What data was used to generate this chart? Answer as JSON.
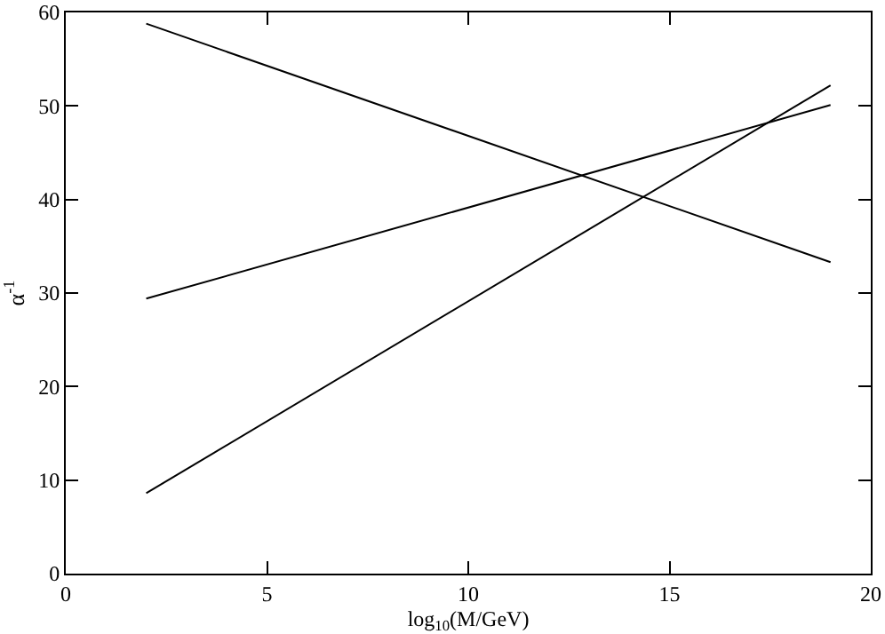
{
  "chart_data": {
    "type": "line",
    "xlabel": "log$_{10}$(M/GeV)",
    "ylabel": "α$^{-1}$",
    "x": [
      2,
      19
    ],
    "series": [
      {
        "color": "#000000",
        "values": [
          58.8,
          33.3
        ]
      },
      {
        "color": "#000000",
        "values": [
          29.4,
          50.1
        ]
      },
      {
        "color": "#000000",
        "values": [
          8.6,
          52.2
        ]
      }
    ],
    "xlim": [
      0,
      20
    ],
    "xticks": [
      0,
      5,
      10,
      15,
      20
    ],
    "ylim": [
      0,
      60
    ],
    "yticks": [
      0,
      10,
      20,
      30,
      40,
      50,
      60
    ],
    "grid": false,
    "marker": "none",
    "line_style": "solid"
  }
}
